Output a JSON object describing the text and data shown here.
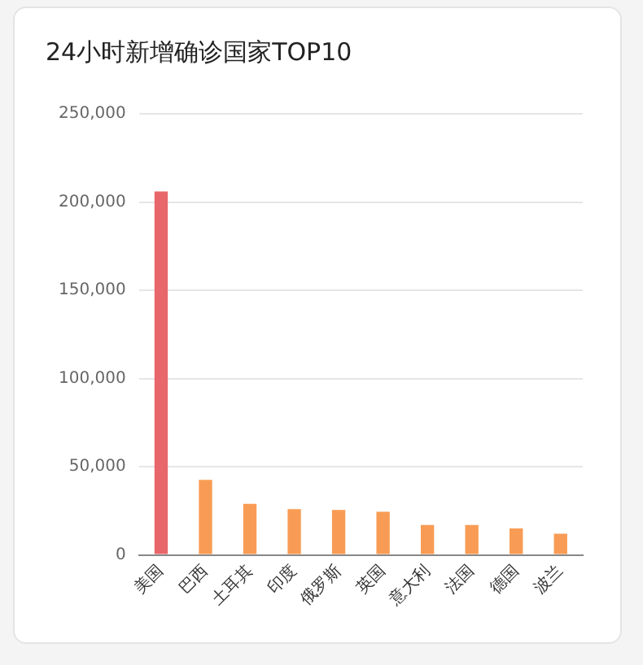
{
  "chart_data": {
    "type": "bar",
    "title": "24小时新增确诊国家TOP10",
    "categories": [
      "美国",
      "巴西",
      "土耳其",
      "印度",
      "俄罗斯",
      "英国",
      "意大利",
      "法国",
      "德国",
      "波兰"
    ],
    "values": [
      206000,
      42500,
      29000,
      26000,
      25500,
      24500,
      17000,
      17000,
      15000,
      12000
    ],
    "colors": [
      "#e8676b",
      "#f89c55",
      "#f89c55",
      "#f89c55",
      "#f89c55",
      "#f89c55",
      "#f89c55",
      "#f89c55",
      "#f89c55",
      "#f89c55"
    ],
    "ylim": [
      0,
      250000
    ],
    "yticks": [
      0,
      {
        "value": 50000,
        "label": "50,000"
      },
      {
        "value": 100000,
        "label": "100,000"
      },
      {
        "value": 150000,
        "label": "150,000"
      },
      {
        "value": 200000,
        "label": "200,000"
      },
      {
        "value": 250000,
        "label": "250,000"
      }
    ],
    "grid": "y",
    "legend": false
  }
}
